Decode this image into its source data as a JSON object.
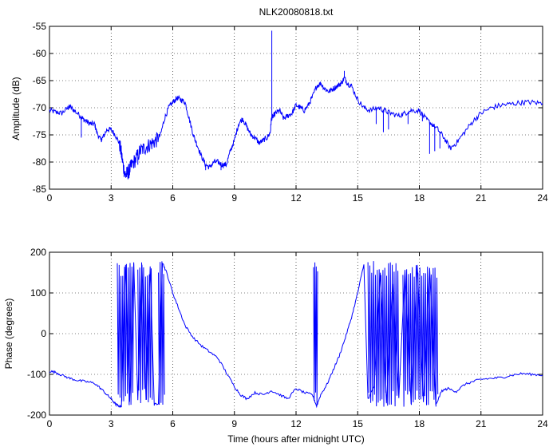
{
  "chart_data": [
    {
      "type": "line",
      "title": "NLK20080818.txt",
      "xlabel": "",
      "ylabel": "Amplitude (dB)",
      "xlim": [
        0,
        24
      ],
      "ylim": [
        -85,
        -55
      ],
      "xticks": [
        0,
        3,
        6,
        9,
        12,
        15,
        18,
        21,
        24
      ],
      "yticks": [
        -85,
        -80,
        -75,
        -70,
        -65,
        -60,
        -55
      ],
      "grid": true,
      "series": [
        {
          "color": "#0000ff",
          "x": [
            0,
            0.3,
            0.6,
            0.9,
            1.0,
            1.2,
            1.5,
            1.6,
            1.8,
            2.0,
            2.2,
            2.3,
            2.5,
            2.6,
            2.8,
            3.0,
            3.2,
            3.4,
            3.5,
            3.6,
            3.7,
            3.8,
            3.9,
            4.0,
            4.2,
            4.4,
            4.6,
            4.8,
            5.0,
            5.2,
            5.4,
            5.6,
            5.8,
            6.0,
            6.2,
            6.4,
            6.6,
            6.8,
            7.0,
            7.2,
            7.4,
            7.6,
            7.8,
            8.0,
            8.2,
            8.4,
            8.6,
            8.8,
            9.0,
            9.2,
            9.4,
            9.6,
            9.8,
            10.0,
            10.2,
            10.4,
            10.6,
            10.75,
            10.8,
            10.9,
            11.0,
            11.2,
            11.4,
            11.6,
            11.8,
            12.0,
            12.2,
            12.4,
            12.6,
            12.8,
            13.0,
            13.2,
            13.4,
            13.6,
            13.8,
            14.0,
            14.2,
            14.35,
            14.5,
            14.7,
            15.0,
            15.3,
            15.6,
            16.0,
            16.3,
            16.6,
            17.0,
            17.3,
            17.6,
            18.0,
            18.3,
            18.6,
            18.9,
            19.2,
            19.5,
            19.8,
            20.2,
            20.6,
            21.0,
            21.5,
            22.0,
            22.5,
            23.0,
            23.5,
            24.0
          ],
          "y": [
            -70.5,
            -70.8,
            -71.0,
            -70.0,
            -69.8,
            -70.5,
            -71.5,
            -72.0,
            -72.5,
            -73.0,
            -73.0,
            -74.5,
            -76.0,
            -75.5,
            -74.0,
            -74.0,
            -75.0,
            -76.5,
            -78.5,
            -81.0,
            -82.5,
            -82.0,
            -81.5,
            -80.5,
            -79.5,
            -78.0,
            -77.5,
            -77.0,
            -76.5,
            -76.0,
            -75.0,
            -72.0,
            -70.0,
            -69.0,
            -68.2,
            -68.5,
            -69.0,
            -72.0,
            -75.0,
            -77.0,
            -79.0,
            -80.5,
            -81.0,
            -80.0,
            -80.0,
            -80.5,
            -80.5,
            -78.0,
            -76.0,
            -73.0,
            -72.0,
            -73.5,
            -75.0,
            -75.5,
            -76.5,
            -76.0,
            -75.5,
            -74.5,
            -72.0,
            -71.5,
            -71.0,
            -70.5,
            -72.0,
            -71.5,
            -71.0,
            -69.5,
            -70.0,
            -70.5,
            -69.5,
            -68.0,
            -66.0,
            -65.5,
            -66.5,
            -67.0,
            -66.5,
            -66.0,
            -65.5,
            -64.5,
            -65.5,
            -66.0,
            -68.5,
            -70.0,
            -70.5,
            -70.0,
            -70.5,
            -71.0,
            -71.5,
            -71.0,
            -70.5,
            -70.5,
            -72.0,
            -73.0,
            -74.0,
            -75.5,
            -77.5,
            -76.5,
            -74.5,
            -72.5,
            -71.0,
            -70.0,
            -69.5,
            -69.3,
            -69.0,
            -69.0,
            -69.2
          ],
          "spikes": [
            {
              "x": 1.55,
              "y": -75.5
            },
            {
              "x": 2.55,
              "y": -76.0
            },
            {
              "x": 3.85,
              "y": -83.0
            },
            {
              "x": 4.3,
              "y": -80.5
            },
            {
              "x": 7.6,
              "y": -81.5
            },
            {
              "x": 8.35,
              "y": -81.5
            },
            {
              "x": 10.82,
              "y": -55.8
            },
            {
              "x": 14.35,
              "y": -63.2
            },
            {
              "x": 15.9,
              "y": -73.0
            },
            {
              "x": 16.25,
              "y": -74.5
            },
            {
              "x": 16.5,
              "y": -74.0
            },
            {
              "x": 17.45,
              "y": -73.0
            },
            {
              "x": 18.15,
              "y": -72.5
            },
            {
              "x": 18.5,
              "y": -78.5
            },
            {
              "x": 18.75,
              "y": -78.0
            },
            {
              "x": 19.0,
              "y": -77.5
            }
          ]
        }
      ]
    },
    {
      "type": "line",
      "title": "",
      "xlabel": "Time (hours after midnight UTC)",
      "ylabel": "Phase (degrees)",
      "xlim": [
        0,
        24
      ],
      "ylim": [
        -200,
        200
      ],
      "xticks": [
        0,
        3,
        6,
        9,
        12,
        15,
        18,
        21,
        24
      ],
      "yticks": [
        -200,
        -100,
        0,
        100,
        200
      ],
      "grid": true,
      "series": [
        {
          "color": "#0000ff",
          "x": [
            0,
            0.3,
            0.6,
            1.0,
            1.4,
            1.8,
            2.2,
            2.5,
            2.8,
            3.0,
            3.2,
            3.35,
            3.5,
            3.7,
            3.9,
            4.1,
            4.3,
            4.5,
            4.7,
            4.9,
            5.1,
            5.3,
            5.5,
            5.7,
            6.0,
            6.3,
            6.6,
            7.0,
            7.4,
            7.8,
            8.2,
            8.6,
            9.0,
            9.3,
            9.6,
            10.0,
            10.4,
            10.8,
            11.2,
            11.6,
            12.0,
            12.4,
            12.8,
            13.0,
            13.2,
            13.5,
            13.8,
            14.1,
            14.4,
            14.7,
            15.0,
            15.3,
            15.5,
            15.8,
            16.1,
            16.4,
            16.7,
            17.0,
            17.3,
            17.6,
            17.9,
            18.2,
            18.5,
            18.8,
            19.1,
            19.4,
            19.8,
            20.2,
            20.6,
            21.0,
            21.5,
            22.0,
            22.5,
            23.0,
            23.5,
            24.0
          ],
          "y": [
            -92,
            -95,
            -102,
            -110,
            -115,
            -118,
            -122,
            -135,
            -150,
            -160,
            -172,
            -178,
            -178,
            170,
            -170,
            175,
            -165,
            170,
            -160,
            165,
            -175,
            -170,
            175,
            150,
            100,
            60,
            20,
            -10,
            -30,
            -45,
            -60,
            -95,
            -130,
            -150,
            -160,
            -145,
            -150,
            -140,
            -150,
            -160,
            -135,
            -145,
            -150,
            -178,
            -150,
            -125,
            -90,
            -55,
            -10,
            40,
            100,
            170,
            -160,
            -130,
            150,
            -170,
            120,
            -160,
            155,
            -175,
            170,
            -170,
            160,
            -175,
            -140,
            -135,
            -142,
            -125,
            -118,
            -112,
            -110,
            -108,
            -102,
            -98,
            -100,
            -102
          ],
          "bursts": [
            {
              "x0": 3.3,
              "x1": 4.1,
              "ymin": -180,
              "ymax": 180
            },
            {
              "x0": 4.3,
              "x1": 5.0,
              "ymin": -175,
              "ymax": 175
            },
            {
              "x0": 5.3,
              "x1": 5.6,
              "ymin": -180,
              "ymax": 180
            },
            {
              "x0": 12.85,
              "x1": 13.05,
              "ymin": -180,
              "ymax": 180
            },
            {
              "x0": 15.5,
              "x1": 17.0,
              "ymin": -180,
              "ymax": 180
            },
            {
              "x0": 17.2,
              "x1": 18.9,
              "ymin": -180,
              "ymax": 175
            }
          ]
        }
      ]
    }
  ]
}
